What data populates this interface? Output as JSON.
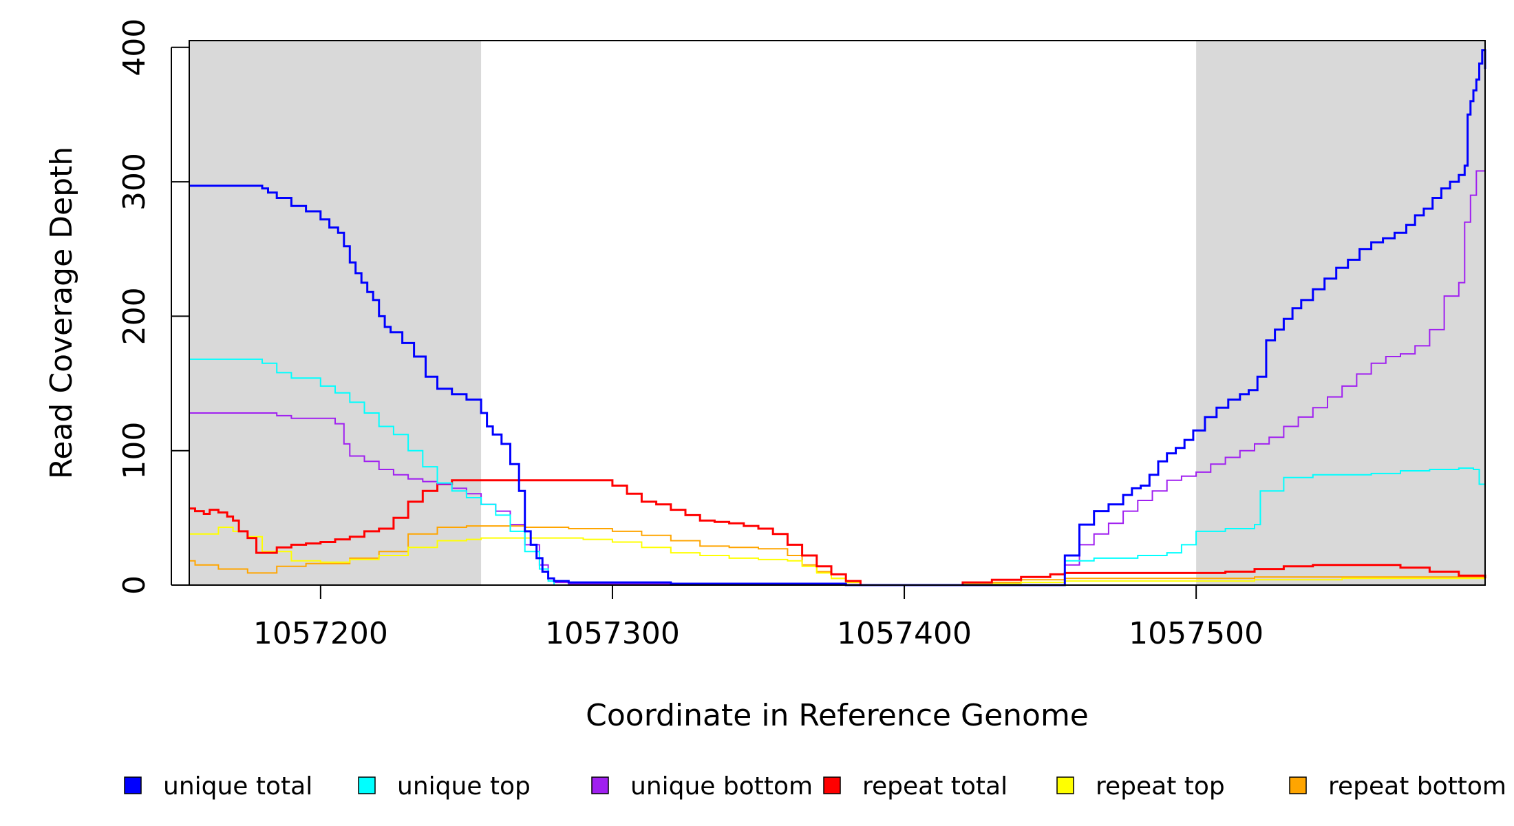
{
  "chart_data": {
    "type": "line",
    "title": "",
    "xlabel": "Coordinate in Reference Genome",
    "ylabel": "Read Coverage Depth",
    "xlim": [
      1057155,
      1057599
    ],
    "ylim": [
      0,
      405
    ],
    "grid": false,
    "legend_placement": "bottom",
    "x_ticks": [
      1057200,
      1057300,
      1057400,
      1057500
    ],
    "x_tick_labels": [
      "1057200",
      "1057300",
      "1057400",
      "1057500"
    ],
    "y_ticks": [
      0,
      100,
      200,
      300,
      400
    ],
    "y_tick_labels": [
      "0",
      "100",
      "200",
      "300",
      "400"
    ],
    "shaded_regions": [
      {
        "x0": 1057155,
        "x1": 1057255,
        "color": "#d9d9d9"
      },
      {
        "x0": 1057500,
        "x1": 1057599,
        "color": "#d9d9d9"
      }
    ],
    "series": [
      {
        "name": "repeat bottom",
        "color": "#ffa500",
        "width": 2,
        "x": [
          1057155,
          1057157,
          1057165,
          1057175,
          1057185,
          1057195,
          1057210,
          1057220,
          1057230,
          1057240,
          1057250,
          1057255,
          1057270,
          1057285,
          1057300,
          1057310,
          1057320,
          1057330,
          1057340,
          1057350,
          1057360,
          1057365,
          1057370,
          1057375,
          1057380,
          1057385,
          1057400,
          1057420,
          1057440,
          1057455,
          1057460,
          1057500,
          1057520,
          1057550,
          1057580,
          1057599
        ],
        "y": [
          18,
          15,
          12,
          9,
          14,
          16,
          20,
          25,
          38,
          43,
          44,
          44,
          43,
          42,
          40,
          37,
          33,
          29,
          28,
          27,
          22,
          15,
          10,
          5,
          2,
          0,
          0,
          2,
          4,
          5,
          5,
          5,
          6,
          6,
          6,
          5
        ]
      },
      {
        "name": "repeat top",
        "color": "#ffff00",
        "width": 2,
        "x": [
          1057155,
          1057160,
          1057165,
          1057170,
          1057175,
          1057180,
          1057190,
          1057200,
          1057210,
          1057220,
          1057230,
          1057240,
          1057250,
          1057255,
          1057265,
          1057280,
          1057290,
          1057295,
          1057300,
          1057310,
          1057320,
          1057330,
          1057340,
          1057350,
          1057360,
          1057365,
          1057370,
          1057375,
          1057380,
          1057385,
          1057400,
          1057420,
          1057440,
          1057455,
          1057500,
          1057520,
          1057550,
          1057580,
          1057599
        ],
        "y": [
          38,
          38,
          43,
          40,
          36,
          25,
          18,
          17,
          19,
          22,
          28,
          33,
          34,
          35,
          35,
          35,
          34,
          34,
          32,
          28,
          24,
          22,
          20,
          19,
          18,
          14,
          9,
          5,
          2,
          0,
          0,
          1,
          2,
          3,
          3,
          4,
          5,
          5,
          3
        ]
      },
      {
        "name": "repeat total",
        "color": "#ff0000",
        "width": 3,
        "x": [
          1057155,
          1057157,
          1057160,
          1057162,
          1057165,
          1057168,
          1057170,
          1057172,
          1057175,
          1057178,
          1057185,
          1057190,
          1057195,
          1057200,
          1057205,
          1057210,
          1057215,
          1057220,
          1057225,
          1057230,
          1057235,
          1057240,
          1057245,
          1057250,
          1057255,
          1057260,
          1057270,
          1057280,
          1057290,
          1057300,
          1057305,
          1057310,
          1057315,
          1057320,
          1057325,
          1057330,
          1057335,
          1057340,
          1057345,
          1057350,
          1057355,
          1057360,
          1057365,
          1057370,
          1057375,
          1057380,
          1057385,
          1057390,
          1057400,
          1057410,
          1057420,
          1057430,
          1057440,
          1057450,
          1057455,
          1057460,
          1057470,
          1057480,
          1057490,
          1057500,
          1057510,
          1057520,
          1057530,
          1057540,
          1057550,
          1057560,
          1057570,
          1057580,
          1057590,
          1057599
        ],
        "y": [
          57,
          55,
          53,
          56,
          54,
          51,
          48,
          40,
          35,
          24,
          28,
          30,
          31,
          32,
          34,
          36,
          40,
          42,
          50,
          62,
          70,
          75,
          78,
          78,
          78,
          78,
          78,
          78,
          78,
          74,
          68,
          62,
          60,
          56,
          52,
          48,
          47,
          46,
          44,
          42,
          38,
          30,
          22,
          14,
          8,
          3,
          0,
          0,
          0,
          0,
          2,
          4,
          6,
          8,
          9,
          9,
          9,
          9,
          9,
          9,
          10,
          12,
          14,
          15,
          15,
          15,
          13,
          10,
          7,
          5
        ]
      },
      {
        "name": "unique bottom",
        "color": "#a020f0",
        "width": 2,
        "x": [
          1057155,
          1057180,
          1057185,
          1057190,
          1057200,
          1057205,
          1057208,
          1057210,
          1057215,
          1057220,
          1057225,
          1057230,
          1057235,
          1057240,
          1057245,
          1057250,
          1057255,
          1057260,
          1057265,
          1057270,
          1057275,
          1057278,
          1057280,
          1057285,
          1057300,
          1057320,
          1057340,
          1057360,
          1057380,
          1057400,
          1057420,
          1057440,
          1057450,
          1057455,
          1057460,
          1057465,
          1057470,
          1057475,
          1057480,
          1057485,
          1057490,
          1057495,
          1057500,
          1057505,
          1057510,
          1057515,
          1057520,
          1057525,
          1057530,
          1057535,
          1057540,
          1057545,
          1057550,
          1057555,
          1057560,
          1057565,
          1057570,
          1057575,
          1057580,
          1057585,
          1057590,
          1057592,
          1057594,
          1057596,
          1057599
        ],
        "y": [
          128,
          128,
          126,
          124,
          124,
          120,
          105,
          96,
          92,
          86,
          82,
          79,
          77,
          75,
          72,
          68,
          60,
          55,
          45,
          30,
          15,
          5,
          2,
          1,
          1,
          0,
          0,
          0,
          0,
          0,
          0,
          0,
          0,
          15,
          30,
          38,
          46,
          55,
          63,
          70,
          78,
          81,
          84,
          90,
          95,
          100,
          105,
          110,
          118,
          125,
          132,
          140,
          148,
          157,
          165,
          170,
          172,
          178,
          190,
          215,
          225,
          270,
          290,
          308,
          312
        ]
      },
      {
        "name": "unique top",
        "color": "#00ffff",
        "width": 2,
        "x": [
          1057155,
          1057175,
          1057180,
          1057185,
          1057190,
          1057200,
          1057205,
          1057210,
          1057215,
          1057220,
          1057225,
          1057230,
          1057235,
          1057240,
          1057245,
          1057250,
          1057255,
          1057260,
          1057265,
          1057270,
          1057275,
          1057278,
          1057280,
          1057290,
          1057300,
          1057320,
          1057340,
          1057360,
          1057380,
          1057400,
          1057420,
          1057440,
          1057450,
          1057455,
          1057465,
          1057480,
          1057490,
          1057495,
          1057500,
          1057510,
          1057520,
          1057522,
          1057530,
          1057540,
          1057550,
          1057560,
          1057570,
          1057580,
          1057590,
          1057595,
          1057597,
          1057599
        ],
        "y": [
          168,
          168,
          165,
          158,
          154,
          148,
          143,
          136,
          128,
          118,
          112,
          100,
          88,
          76,
          70,
          65,
          60,
          52,
          40,
          25,
          12,
          3,
          0,
          0,
          0,
          0,
          0,
          0,
          0,
          0,
          0,
          0,
          0,
          18,
          20,
          22,
          24,
          30,
          40,
          42,
          45,
          70,
          80,
          82,
          82,
          83,
          85,
          86,
          87,
          86,
          75,
          71
        ]
      },
      {
        "name": "unique total",
        "color": "#0000ff",
        "width": 3,
        "x": [
          1057155,
          1057175,
          1057180,
          1057182,
          1057185,
          1057190,
          1057195,
          1057200,
          1057203,
          1057206,
          1057208,
          1057210,
          1057212,
          1057214,
          1057216,
          1057218,
          1057220,
          1057222,
          1057224,
          1057228,
          1057232,
          1057236,
          1057240,
          1057245,
          1057250,
          1057255,
          1057257,
          1057259,
          1057262,
          1057265,
          1057268,
          1057270,
          1057272,
          1057274,
          1057276,
          1057278,
          1057280,
          1057285,
          1057300,
          1057320,
          1057340,
          1057360,
          1057380,
          1057400,
          1057420,
          1057440,
          1057450,
          1057455,
          1057460,
          1057465,
          1057470,
          1057475,
          1057478,
          1057481,
          1057484,
          1057487,
          1057490,
          1057493,
          1057496,
          1057499,
          1057503,
          1057507,
          1057511,
          1057515,
          1057518,
          1057521,
          1057524,
          1057527,
          1057530,
          1057533,
          1057536,
          1057540,
          1057544,
          1057548,
          1057552,
          1057556,
          1057560,
          1057564,
          1057568,
          1057572,
          1057575,
          1057578,
          1057581,
          1057584,
          1057587,
          1057590,
          1057592,
          1057593,
          1057594,
          1057595,
          1057596,
          1057597,
          1057598,
          1057599
        ],
        "y": [
          297,
          297,
          295,
          292,
          288,
          282,
          278,
          272,
          266,
          262,
          252,
          240,
          232,
          225,
          218,
          212,
          200,
          192,
          188,
          180,
          170,
          155,
          146,
          142,
          138,
          128,
          118,
          112,
          105,
          90,
          70,
          40,
          30,
          20,
          10,
          5,
          3,
          2,
          2,
          1,
          1,
          1,
          0,
          0,
          0,
          0,
          0,
          22,
          45,
          55,
          60,
          67,
          72,
          74,
          82,
          92,
          98,
          102,
          108,
          115,
          125,
          132,
          138,
          142,
          145,
          155,
          182,
          190,
          198,
          206,
          212,
          220,
          228,
          236,
          242,
          250,
          255,
          258,
          262,
          268,
          275,
          280,
          288,
          295,
          300,
          305,
          312,
          350,
          360,
          368,
          376,
          388,
          398,
          384
        ]
      }
    ]
  },
  "legend": [
    {
      "label": "unique total",
      "color": "#0000ff"
    },
    {
      "label": "unique top",
      "color": "#00ffff"
    },
    {
      "label": "unique bottom",
      "color": "#a020f0"
    },
    {
      "label": "repeat total",
      "color": "#ff0000"
    },
    {
      "label": "repeat top",
      "color": "#ffff00"
    },
    {
      "label": "repeat bottom",
      "color": "#ffa500"
    }
  ]
}
